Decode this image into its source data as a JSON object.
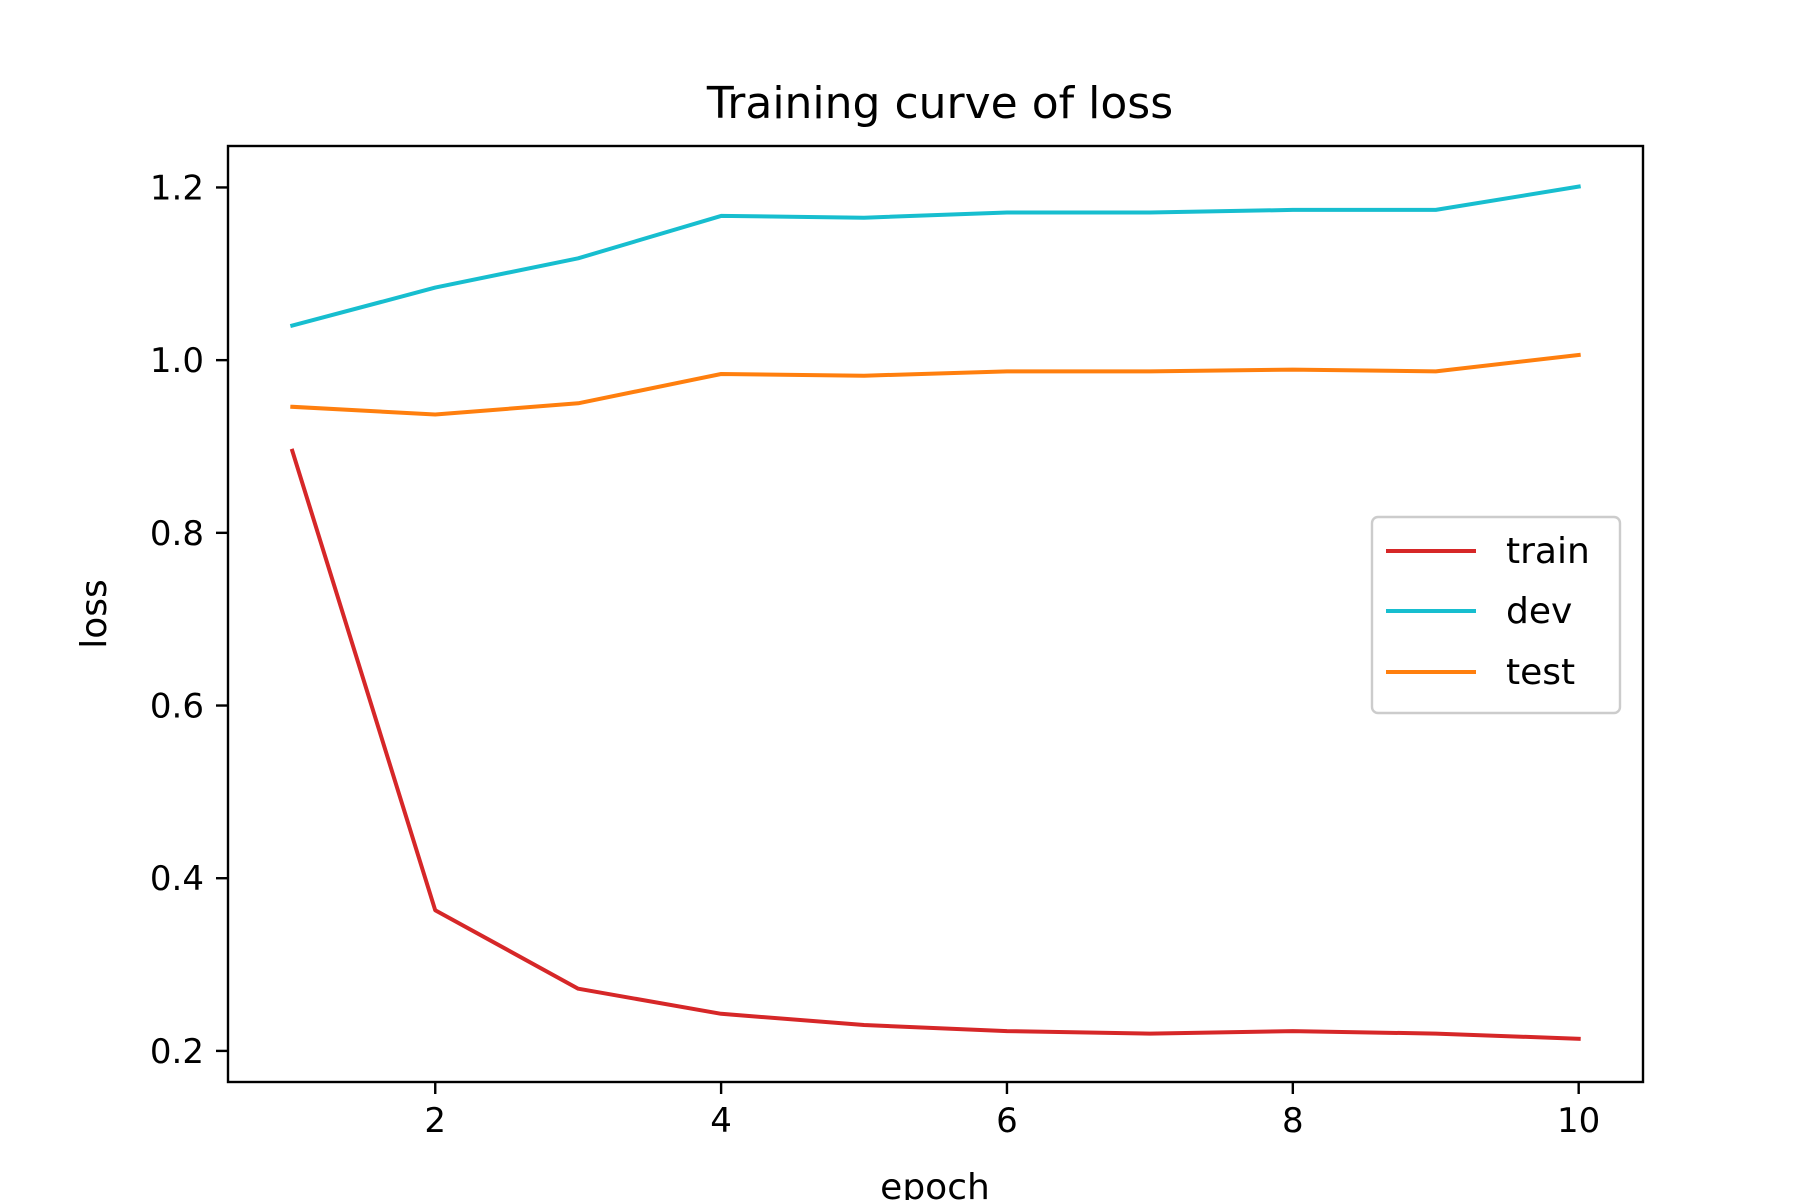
{
  "chart_data": {
    "type": "line",
    "title": "Training curve of loss",
    "xlabel": "epoch",
    "ylabel": "loss",
    "x": [
      1,
      2,
      3,
      4,
      5,
      6,
      7,
      8,
      9,
      10
    ],
    "xlim": [
      0.55,
      10.45
    ],
    "ylim": [
      0.164,
      1.248
    ],
    "xticks": [
      2,
      4,
      6,
      8,
      10
    ],
    "yticks": [
      0.2,
      0.4,
      0.6,
      0.8,
      1.0,
      1.2
    ],
    "xtick_labels": [
      "2",
      "4",
      "6",
      "8",
      "10"
    ],
    "ytick_labels": [
      "0.2",
      "0.4",
      "0.6",
      "0.8",
      "1.0",
      "1.2"
    ],
    "grid": false,
    "legend_position": "center-right",
    "series": [
      {
        "name": "train",
        "color": "#d62728",
        "values": [
          0.895,
          0.363,
          0.272,
          0.243,
          0.23,
          0.223,
          0.22,
          0.223,
          0.22,
          0.214
        ]
      },
      {
        "name": "dev",
        "color": "#17becf",
        "values": [
          1.04,
          1.084,
          1.118,
          1.167,
          1.165,
          1.171,
          1.171,
          1.174,
          1.174,
          1.201
        ]
      },
      {
        "name": "test",
        "color": "#ff7f0e",
        "values": [
          0.946,
          0.937,
          0.95,
          0.984,
          0.982,
          0.987,
          0.987,
          0.989,
          0.987,
          1.006
        ]
      }
    ]
  }
}
